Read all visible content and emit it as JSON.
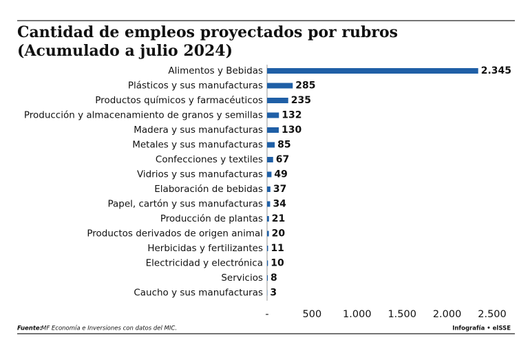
{
  "chart_data": {
    "type": "bar",
    "orientation": "horizontal",
    "title": "Cantidad de empleos proyectados por rubros",
    "subtitle": "(Acumulado a julio 2024)",
    "categories": [
      "Alimentos y Bebidas",
      "Plásticos y sus manufacturas",
      "Productos químicos y farmacéuticos",
      "Producción y almacenamiento de granos y semillas",
      "Madera y sus manufacturas",
      "Metales y sus manufacturas",
      "Confecciones y textiles",
      "Vidrios y sus manufacturas",
      "Elaboración de bebidas",
      "Papel, cartón y sus manufacturas",
      "Producción de plantas",
      "Productos derivados de origen animal",
      "Herbicidas y fertilizantes",
      "Electricidad y electrónica",
      "Servicios",
      "Caucho y sus manufacturas"
    ],
    "values": [
      2345,
      285,
      235,
      132,
      130,
      85,
      67,
      49,
      37,
      34,
      21,
      20,
      11,
      10,
      8,
      3
    ],
    "value_labels": [
      "2.345",
      "285",
      "235",
      "132",
      "130",
      "85",
      "67",
      "49",
      "37",
      "34",
      "21",
      "20",
      "11",
      "10",
      "8",
      "3"
    ],
    "color": "#1f5fa6",
    "xlim": [
      0,
      2500
    ],
    "xticks": [
      {
        "value": 0,
        "label": "-"
      },
      500,
      {
        "value": 1000,
        "label": "1.000"
      },
      {
        "value": 1500,
        "label": "1.500"
      },
      {
        "value": 2000,
        "label": "2.000"
      },
      {
        "value": 2500,
        "label": "2.500"
      }
    ],
    "grid": false,
    "source_label": "Fuente:",
    "source": "MF Economía e Inversiones con datos del MIC.",
    "credit": "Infografía • elSSE"
  }
}
